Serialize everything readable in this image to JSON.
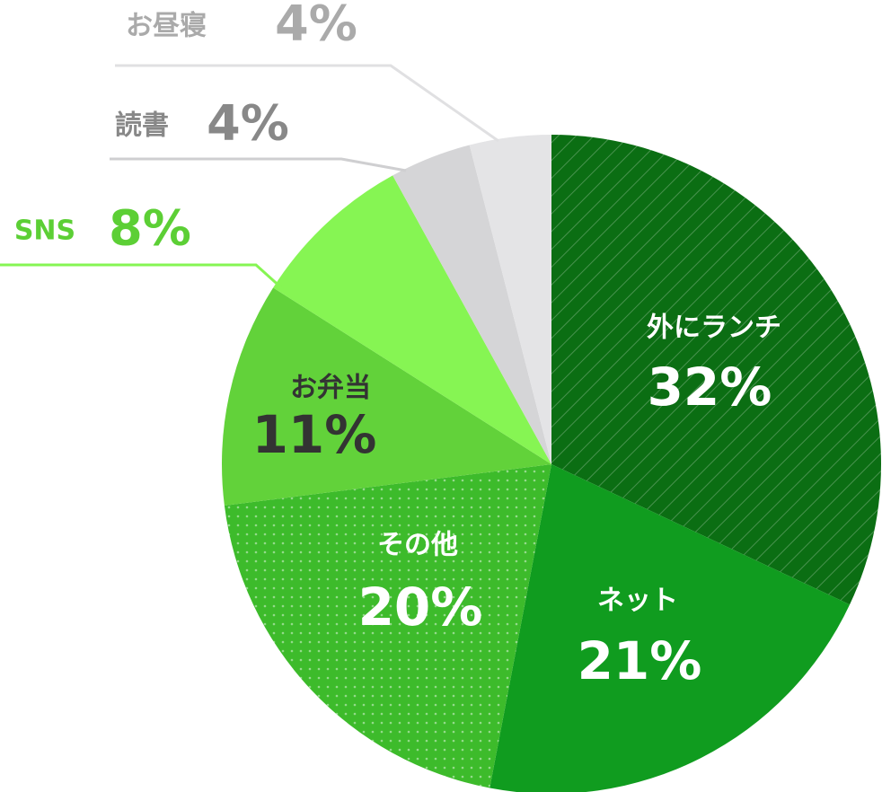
{
  "chart_data": {
    "type": "pie",
    "categories": [
      "外にランチ",
      "ネット",
      "その他",
      "お弁当",
      "SNS",
      "読書",
      "お昼寝"
    ],
    "values": [
      32,
      21,
      20,
      11,
      8,
      4,
      4
    ],
    "value_labels": [
      "32%",
      "21%",
      "20%",
      "11%",
      "8%",
      "4%",
      "4%"
    ],
    "colors": [
      "#0b6e13",
      "#109c1f",
      "#3dbb2b",
      "#62d23a",
      "#86f553",
      "#d5d5d7",
      "#e4e4e6"
    ]
  }
}
